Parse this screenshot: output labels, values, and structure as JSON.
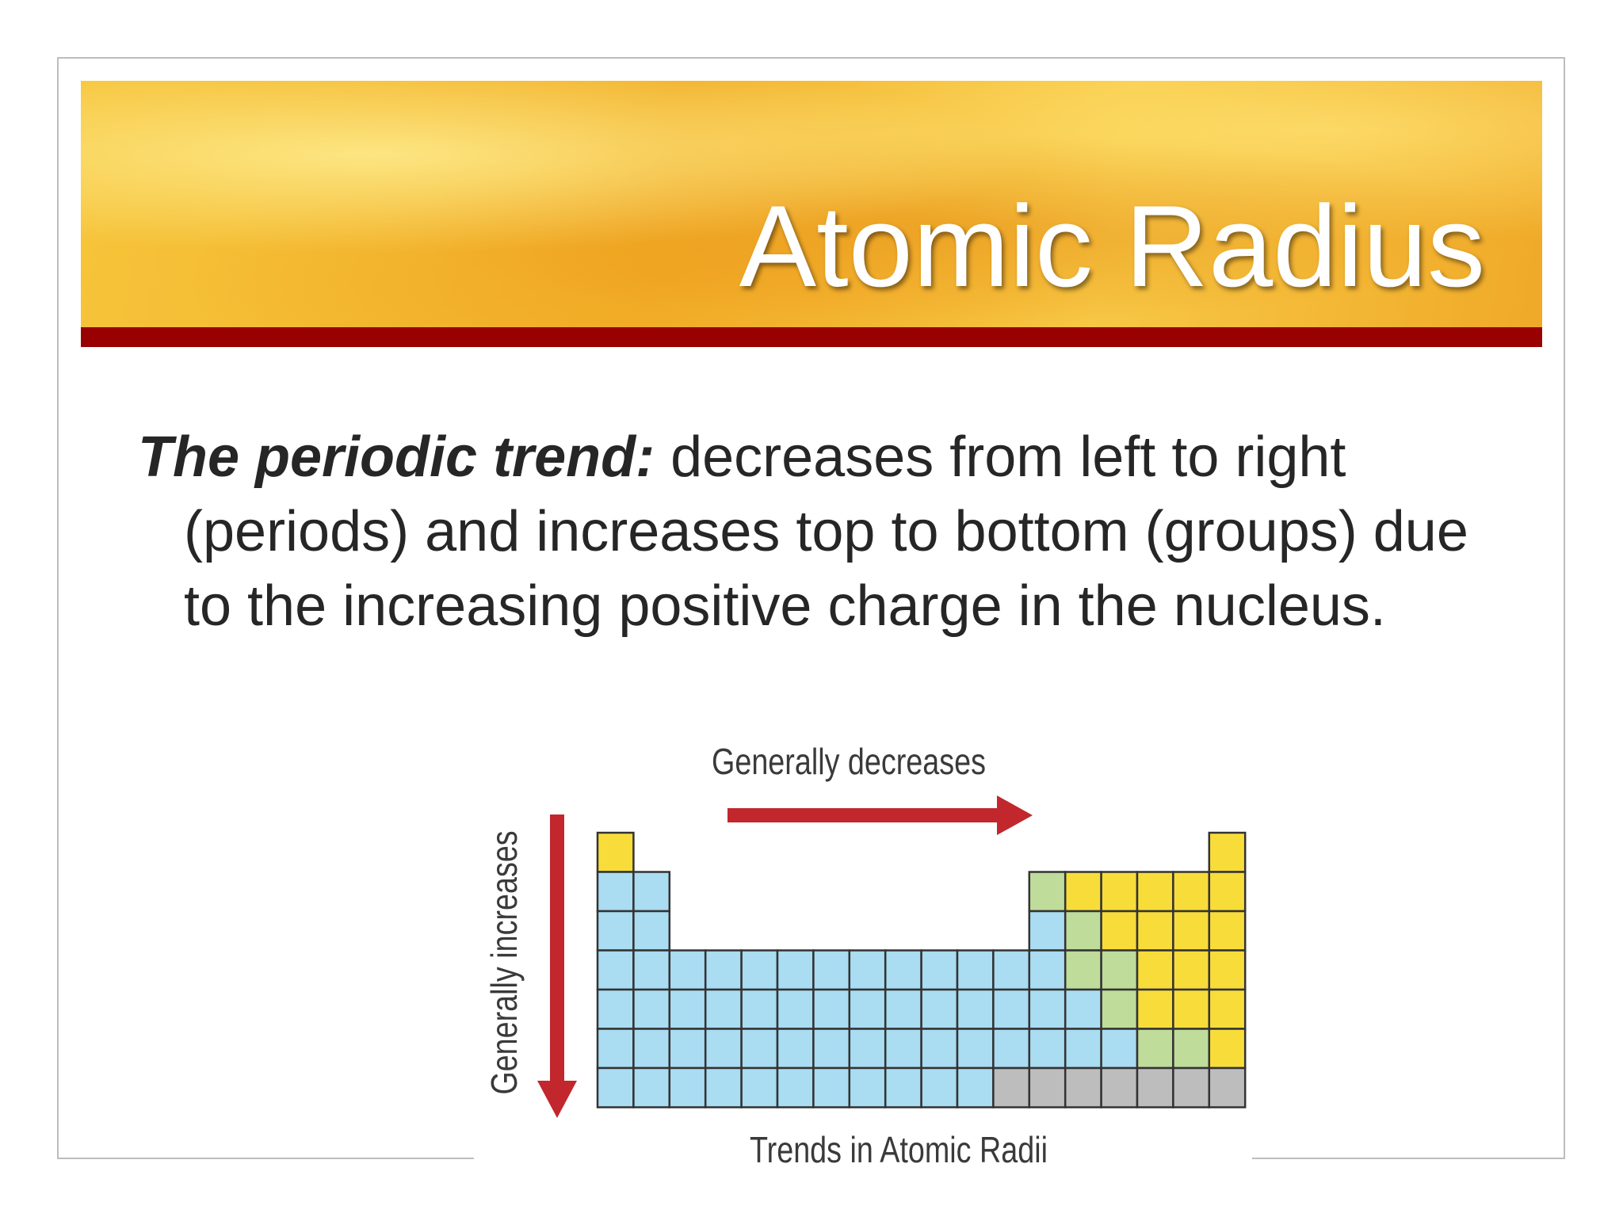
{
  "header": {
    "title": "Atomic Radius"
  },
  "body": {
    "lead": "The periodic trend:",
    "text": "decreases from left to right (periods) and increases top to bottom (groups) due to the increasing positive charge in the nucleus."
  },
  "figure": {
    "top_label": "Generally decreases",
    "side_label": "Generally increases",
    "caption": "Trends in Atomic Radii"
  }
}
